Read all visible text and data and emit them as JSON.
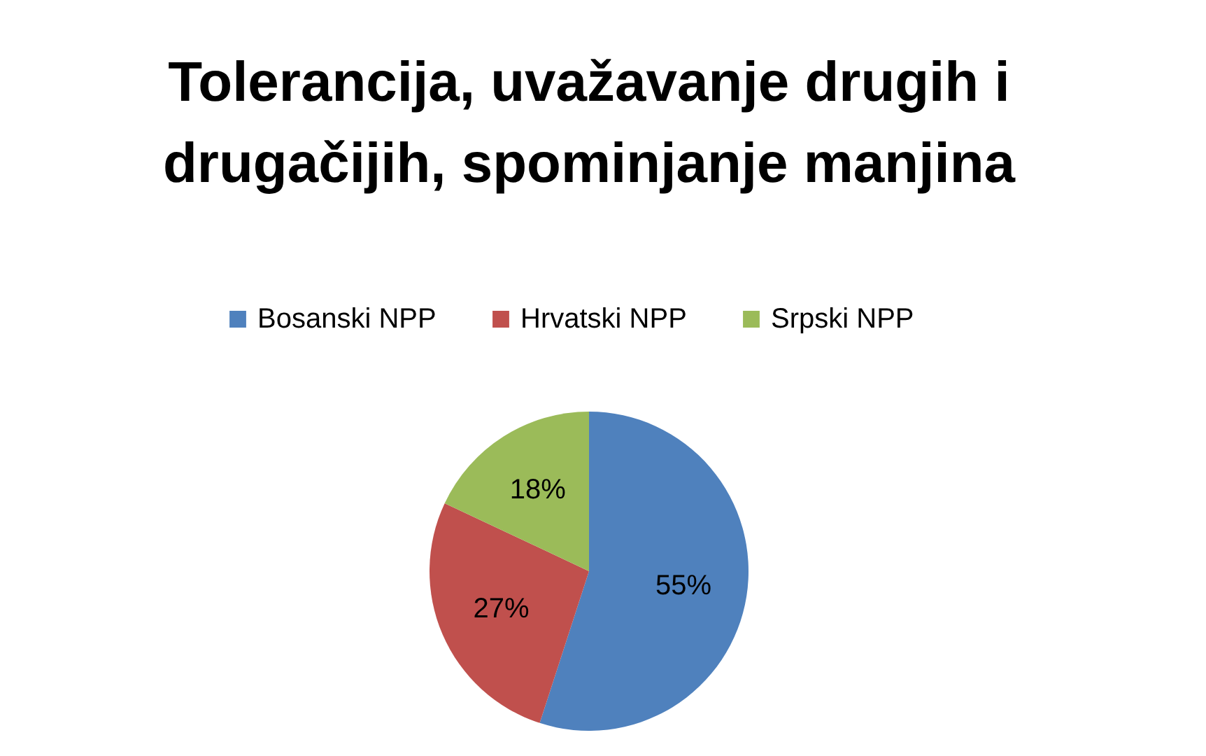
{
  "chart_data": {
    "type": "pie",
    "title": [
      "Tolerancija, uvažavanje drugih i",
      "drugačijih, spominjanje manjina"
    ],
    "categories": [
      "Bosanski NPP",
      "Hrvatski NPP",
      "Srpski NPP"
    ],
    "values": [
      55,
      27,
      18
    ],
    "colors": [
      "#4f81bd",
      "#c0504d",
      "#9bbb59"
    ],
    "value_labels": [
      "55%",
      "27%",
      "18%"
    ],
    "legend": "top"
  }
}
